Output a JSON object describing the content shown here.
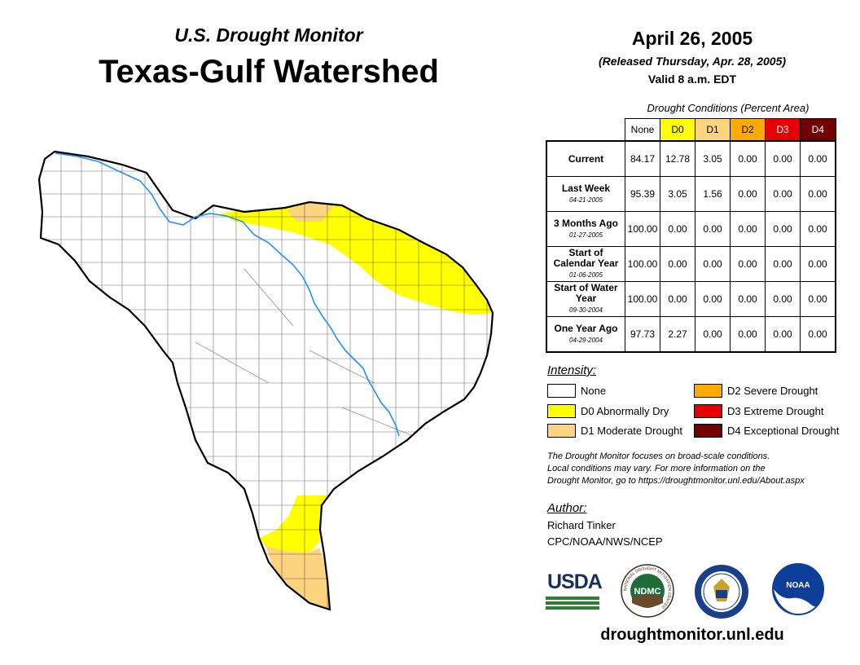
{
  "header": {
    "subtitle": "U.S. Drought Monitor",
    "title": "Texas-Gulf Watershed",
    "date": "April 26, 2005",
    "released": "(Released Thursday, Apr. 28, 2005)",
    "valid": "Valid 8 a.m. EDT"
  },
  "table": {
    "caption": "Drought Conditions (Percent Area)",
    "columns": [
      {
        "label": "None",
        "color": "#ffffff",
        "text_color": "#000000"
      },
      {
        "label": "D0",
        "color": "#ffff00",
        "text_color": "#000000"
      },
      {
        "label": "D1",
        "color": "#fcd37f",
        "text_color": "#000000"
      },
      {
        "label": "D2",
        "color": "#ffaa00",
        "text_color": "#000000"
      },
      {
        "label": "D3",
        "color": "#e60000",
        "text_color": "#ffffff"
      },
      {
        "label": "D4",
        "color": "#730000",
        "text_color": "#ffffff"
      }
    ],
    "rows": [
      {
        "label": "Current",
        "date": "",
        "values": [
          "84.17",
          "12.78",
          "3.05",
          "0.00",
          "0.00",
          "0.00"
        ]
      },
      {
        "label": "Last Week",
        "date": "04-21-2005",
        "values": [
          "95.39",
          "3.05",
          "1.56",
          "0.00",
          "0.00",
          "0.00"
        ]
      },
      {
        "label": "3 Months Ago",
        "date": "01-27-2005",
        "values": [
          "100.00",
          "0.00",
          "0.00",
          "0.00",
          "0.00",
          "0.00"
        ]
      },
      {
        "label": "Start of Calendar Year",
        "date": "01-06-2005",
        "values": [
          "100.00",
          "0.00",
          "0.00",
          "0.00",
          "0.00",
          "0.00"
        ]
      },
      {
        "label": "Start of Water Year",
        "date": "09-30-2004",
        "values": [
          "100.00",
          "0.00",
          "0.00",
          "0.00",
          "0.00",
          "0.00"
        ]
      },
      {
        "label": "One Year Ago",
        "date": "04-29-2004",
        "values": [
          "97.73",
          "2.27",
          "0.00",
          "0.00",
          "0.00",
          "0.00"
        ]
      }
    ]
  },
  "legend": {
    "heading": "Intensity:",
    "items": [
      {
        "label": "None",
        "color": "#ffffff"
      },
      {
        "label": "D0 Abnormally Dry",
        "color": "#ffff00"
      },
      {
        "label": "D1 Moderate Drought",
        "color": "#fcd37f"
      },
      {
        "label": "D2 Severe Drought",
        "color": "#ffaa00"
      },
      {
        "label": "D3 Extreme Drought",
        "color": "#e60000"
      },
      {
        "label": "D4 Exceptional Drought",
        "color": "#730000"
      }
    ]
  },
  "note": {
    "line1": "The Drought Monitor focuses on broad-scale conditions.",
    "line2": "Local conditions may vary. For more information on the",
    "line3": "Drought Monitor, go to https://droughtmonitor.unl.edu/About.aspx"
  },
  "author": {
    "heading": "Author:",
    "name": "Richard Tinker",
    "org": "CPC/NOAA/NWS/NCEP"
  },
  "logos": {
    "usda": "USDA",
    "ndmc": "NDMC",
    "ndmc_ring": "NATIONAL DROUGHT MITIGATION CENTER",
    "noaa": "NOAA"
  },
  "footer": {
    "site": "droughtmonitor.unl.edu"
  }
}
